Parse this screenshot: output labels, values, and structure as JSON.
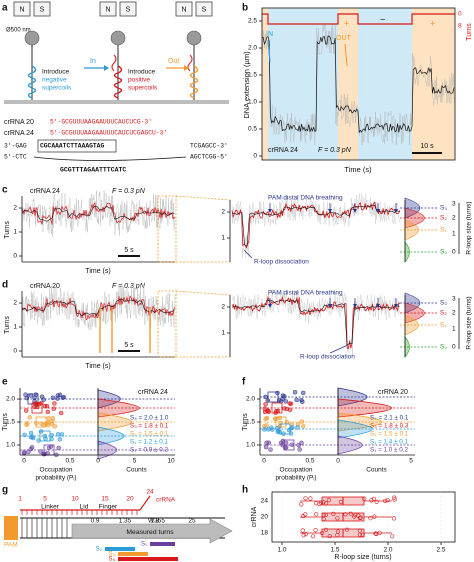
{
  "a": {
    "label": "a",
    "magnets": [
      "N",
      "S",
      "N",
      "S",
      "N",
      "S"
    ],
    "bead_size": "Ø500 nm",
    "negative": [
      "Introduce",
      "negative",
      "supercoils"
    ],
    "positive": [
      "Introduce",
      "positive",
      "supercoils"
    ],
    "in": "In",
    "out": "Out",
    "crrna20": {
      "name": "crRNA 20",
      "seq": "5'-GCGUUUAAGAAUUUCAUCUCG-3'"
    },
    "crrna24": {
      "name": "crRNA 24",
      "seq": "5'-GCGUUUAAGAAUUUCAUCUCGAGCU-3'"
    },
    "target_strand": [
      "3'-GAG",
      "CGCAAATCTTAAAGTAG",
      "TCGAGCC-3'"
    ],
    "nontarget_strand": [
      "5'-CTC",
      "AGCTCGG-5'"
    ],
    "protospacer": "GCGTTTAGAATTTCATC"
  },
  "b": {
    "label": "b",
    "ylabel": "DNA extension (µm)",
    "xlabel": "Time (s)",
    "y2label": "Turns",
    "yticks": [
      "0",
      "0.5",
      "1.0",
      "1.5",
      "2.0",
      "2.5"
    ],
    "y2ticks": [
      "0",
      "8"
    ],
    "signs": [
      "+",
      "−",
      "+"
    ],
    "in": "IN",
    "out": "OUT",
    "crrna": "crRNA 24",
    "force": "F = 0.3 pN",
    "scale": "10 s"
  },
  "c": {
    "label": "c",
    "crrna": "crRNA 24",
    "force": "F = 0.3 pN",
    "ylabel": "Turns",
    "xlabel": "Time (s)",
    "yticks": [
      "0",
      "1",
      "2"
    ],
    "zoom_yticks": [
      "1",
      "2"
    ],
    "scale": "5 s",
    "breathing": "PAM distal DNA breathing",
    "dissociation": "R-loop dissociation",
    "states": [
      "S₃",
      "S₂",
      "S₁",
      "S₀"
    ],
    "size_ticks": [
      "3",
      "2",
      "1",
      "0"
    ],
    "size_label": "R-loop size (turns)"
  },
  "d": {
    "label": "d",
    "crrna": "crRNA 20",
    "force": "F = 0.3 pN",
    "ylabel": "Turns",
    "xlabel": "Time (s)",
    "yticks": [
      "0",
      "1",
      "2"
    ],
    "zoom_yticks": [
      "1",
      "2"
    ],
    "scale": "5 s",
    "breathing": "PAM distal DNA breathing",
    "dissociation": "R-loop dissociation",
    "states": [
      "S₃",
      "S₂",
      "S₁",
      "S₀"
    ],
    "size_ticks": [
      "3",
      "2",
      "1",
      "0"
    ],
    "size_label": "R-loop size (turns)"
  },
  "e": {
    "label": "e",
    "crrna": "crRNA 24",
    "ylabel": "Turns",
    "xlabel": [
      "Occupation",
      "probability (Pᵢ)"
    ],
    "counts_label": "Counts",
    "yticks": [
      "1.0",
      "1.5",
      "2.0"
    ],
    "xticks": [
      "0",
      "0.5"
    ],
    "count_ticks": [
      "0",
      "5",
      "10"
    ],
    "legend": [
      "S₄ = 2.0 ± 1.0",
      "S₃ = 1.8 ± 0.1",
      "S₂ = 1.5 ± 0.1",
      "S₁ = 1.2 ± 0.1",
      "S₁ = 0.9 ± 0.2"
    ]
  },
  "f": {
    "label": "f",
    "crrna": "crRNA 20",
    "ylabel": "Turns",
    "xlabel": [
      "Occupation",
      "probability (Pᵢ)"
    ],
    "counts_label": "Counts",
    "yticks": [
      "1.0",
      "1.5",
      "2.0"
    ],
    "xticks": [
      "0",
      "0.5"
    ],
    "count_ticks": [
      "0",
      "5"
    ],
    "legend": [
      "S₄ = 2.1 ± 0.1",
      "S₃ = 1.8 ± 0.3",
      "S₂ = 1.5 ± 0.1",
      "S₁ = 1.4 ± 0.1",
      "S₁ = 1.0 ± 0.2"
    ]
  },
  "g": {
    "label": "g",
    "positions": [
      "1",
      "5",
      "10",
      "15",
      "20",
      "24"
    ],
    "crrna": "crRNA",
    "domains": [
      "Linker",
      "Lid",
      "Finger"
    ],
    "residue": "W355",
    "dna": "DNA",
    "pam": "PAM",
    "turn_ticks": [
      "0.9",
      "1.35",
      "1.8"
    ],
    "end": "25",
    "measured": "Measured turns",
    "states": [
      "S₁",
      "S₂",
      "S₃",
      "S₄"
    ]
  },
  "h": {
    "label": "h",
    "ylabel": "crRNA",
    "yticks": [
      "24",
      "20",
      "18"
    ],
    "xticks": [
      "1.0",
      "1.5",
      "2.0",
      "2.5"
    ],
    "xlabel": "R-loop size (turns)"
  }
}
